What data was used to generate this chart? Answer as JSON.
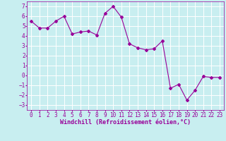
{
  "xdata": [
    0,
    1,
    2,
    3,
    4,
    5,
    6,
    7,
    8,
    9,
    10,
    11,
    12,
    13,
    14,
    15,
    16,
    17,
    18,
    19,
    20,
    21,
    22,
    23
  ],
  "ydata": [
    5.5,
    4.8,
    4.8,
    5.5,
    6.0,
    4.2,
    4.4,
    4.5,
    4.1,
    6.3,
    7.0,
    5.9,
    3.2,
    2.8,
    2.6,
    2.7,
    3.5,
    -1.3,
    -0.9,
    -2.5,
    -1.5,
    -0.1,
    -0.2,
    -0.2
  ],
  "line_color": "#990099",
  "marker": "D",
  "markersize": 2.0,
  "linewidth": 0.8,
  "xlabel": "Windchill (Refroidissement éolien,°C)",
  "xlim": [
    -0.5,
    23.5
  ],
  "ylim": [
    -3.5,
    7.5
  ],
  "yticks": [
    -3,
    -2,
    -1,
    0,
    1,
    2,
    3,
    4,
    5,
    6,
    7
  ],
  "xticks": [
    0,
    1,
    2,
    3,
    4,
    5,
    6,
    7,
    8,
    9,
    10,
    11,
    12,
    13,
    14,
    15,
    16,
    17,
    18,
    19,
    20,
    21,
    22,
    23
  ],
  "bg_color": "#c8eef0",
  "grid_color": "#ffffff",
  "tick_fontsize": 5.5,
  "xlabel_fontsize": 6.0
}
